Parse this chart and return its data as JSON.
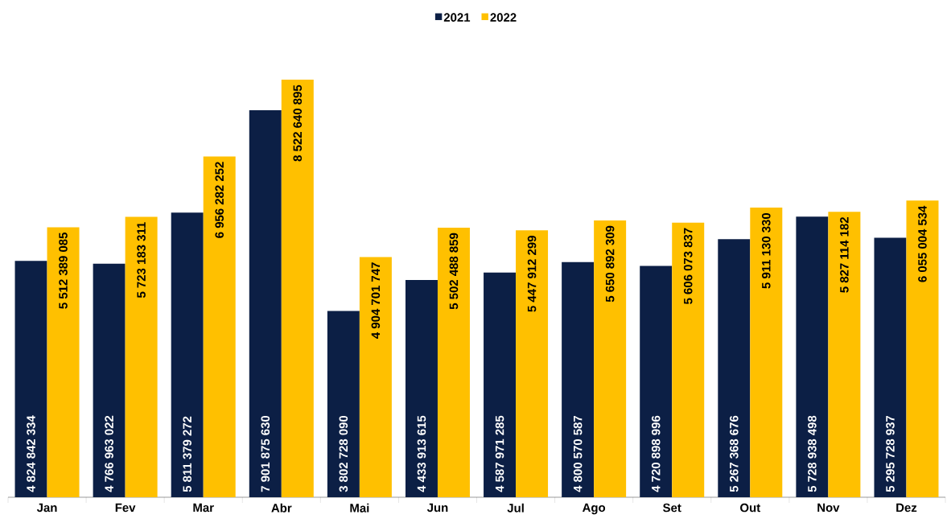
{
  "chart_data": {
    "type": "bar",
    "categories": [
      "Jan",
      "Fev",
      "Mar",
      "Abr",
      "Mai",
      "Jun",
      "Jul",
      "Ago",
      "Set",
      "Out",
      "Nov",
      "Dez"
    ],
    "series": [
      {
        "name": "2021",
        "color": "#0c1f45",
        "values": [
          4824842334,
          4766963022,
          5811379272,
          7901875630,
          3802728090,
          4433913615,
          4587971285,
          4800570587,
          4720898996,
          5267368676,
          5728938498,
          5295728937
        ],
        "value_labels": [
          "4 824 842 334",
          "4 766 963 022",
          "5 811 379 272",
          "7 901 875 630",
          "3 802 728 090",
          "4 433 913 615",
          "4 587 971 285",
          "4 800 570 587",
          "4 720 898 996",
          "5 267 368 676",
          "5 728 938 498",
          "5 295 728 937"
        ]
      },
      {
        "name": "2022",
        "color": "#ffc000",
        "values": [
          5512389085,
          5723183311,
          6956282252,
          8522640895,
          4904701747,
          5502488859,
          5447912299,
          5650892309,
          5606073837,
          5911130330,
          5827114182,
          6055004534
        ],
        "value_labels": [
          "5 512 389 085",
          "5 723 183 311",
          "6 956 282 252",
          "8 522 640 895",
          "4 904 701 747",
          "5 502 488 859",
          "5 447 912 299",
          "5 650 892 309",
          "5 606 073 837",
          "5 911 130 330",
          "5 827 114 182",
          "6 055 004 534"
        ]
      }
    ],
    "legend": "top"
  }
}
